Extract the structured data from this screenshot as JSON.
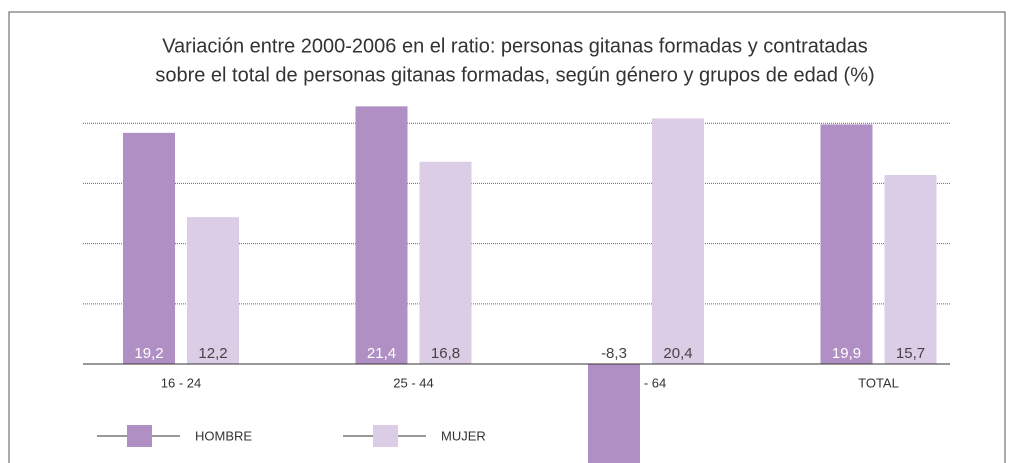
{
  "chart_data": {
    "type": "bar",
    "title": [
      "Variación entre 2000-2006 en el ratio: personas gitanas formadas y contratadas",
      "sobre el total de personas gitanas formadas, según género y grupos de edad (%)"
    ],
    "categories": [
      "16 - 24",
      "25 - 44",
      "45 - 64",
      "TOTAL"
    ],
    "series": [
      {
        "name": "HOMBRE",
        "color": "#b08fc4",
        "values": [
          19.2,
          21.4,
          -8.3,
          19.9
        ],
        "value_labels": [
          "19,2",
          "21,4",
          "-8,3",
          "19,9"
        ]
      },
      {
        "name": "MUJER",
        "color": "#dccde6",
        "values": [
          12.2,
          16.8,
          20.4,
          15.7
        ],
        "value_labels": [
          "12,2",
          "16,8",
          "20,4",
          "15,7"
        ]
      }
    ],
    "ylim": [
      -8.3,
      25
    ],
    "yticks": [
      0,
      5,
      10,
      15,
      20
    ],
    "grid": true
  }
}
